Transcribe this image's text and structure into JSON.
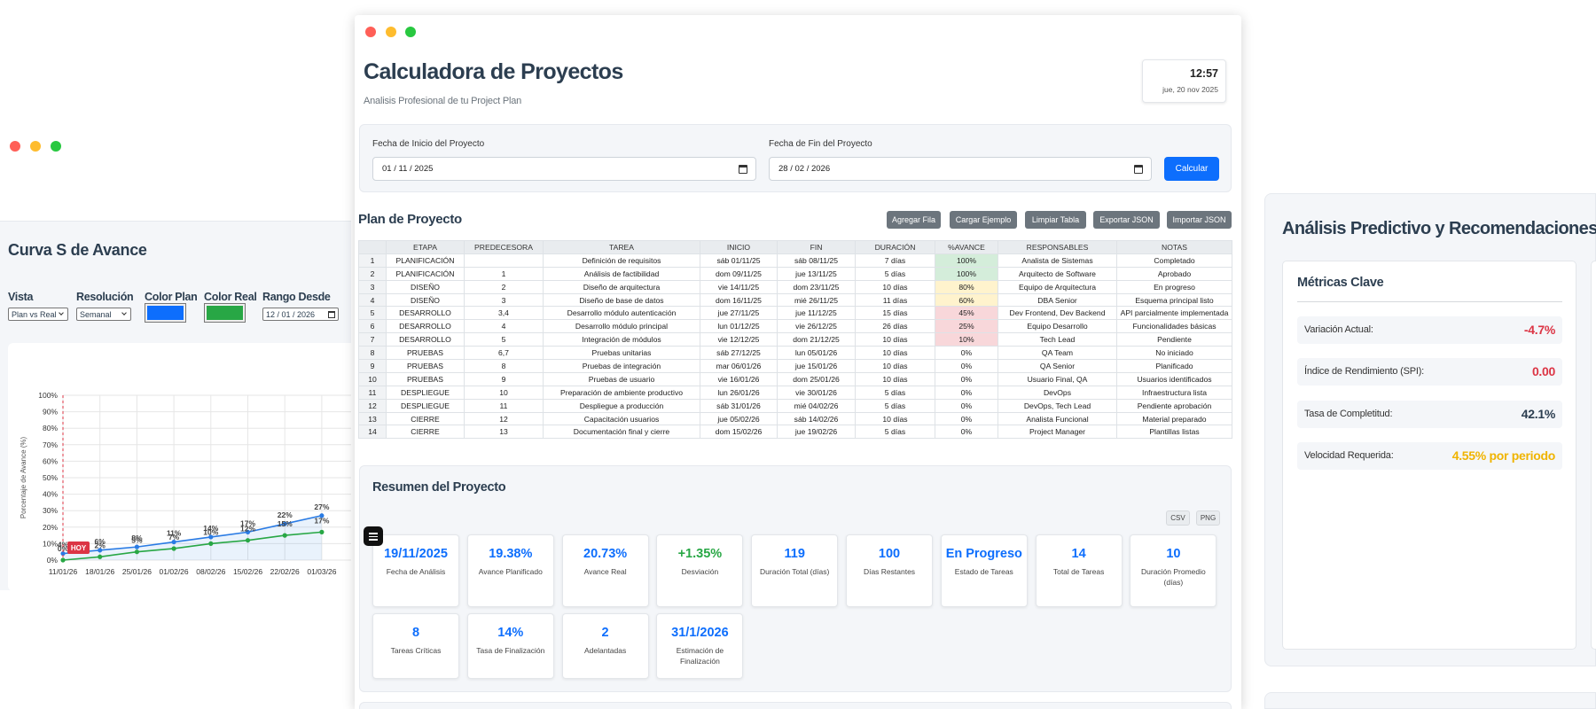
{
  "left_window": {
    "title": "Curva S de Avance",
    "controls": [
      {
        "label": "Vista",
        "kind": "select",
        "value": "Plan vs Real"
      },
      {
        "label": "Resolución",
        "kind": "select",
        "value": "Semanal"
      },
      {
        "label": "Color Plan",
        "kind": "color",
        "color": "#0d6efd"
      },
      {
        "label": "Color Real",
        "kind": "color",
        "color": "#28a745"
      },
      {
        "label": "Rango Desde",
        "kind": "date",
        "value": "12 / 01 / 2026"
      }
    ],
    "chart": {
      "type": "line",
      "ylabel": "Porcentaje de Avance (%)",
      "today_marker": "HOY",
      "categories": [
        "11/01/26",
        "18/01/26",
        "25/01/26",
        "01/02/26",
        "08/02/26",
        "15/02/26",
        "22/02/26",
        "01/03/26"
      ],
      "series": [
        {
          "color": "#2a7be4",
          "values": [
            4,
            6,
            8,
            11,
            14,
            17,
            22,
            27
          ],
          "value_labels": [
            "4%",
            "6%",
            "8%",
            "11%",
            "14%",
            "17%",
            "22%",
            "27%"
          ]
        },
        {
          "color": "#28a745",
          "values": [
            0,
            2,
            5,
            7,
            10,
            12,
            15,
            17
          ],
          "value_labels": [
            "0%",
            "2%",
            "5%",
            "7%",
            "10%",
            "12%",
            "15%",
            "17%"
          ]
        }
      ],
      "ylim": [
        0,
        100
      ],
      "yticks": [
        {
          "value": 0,
          "label": "0%"
        },
        {
          "value": 10,
          "label": "10%"
        },
        {
          "value": 20,
          "label": "20%"
        },
        {
          "value": 30,
          "label": "30%"
        },
        {
          "value": 40,
          "label": "40%"
        },
        {
          "value": 50,
          "label": "50%"
        },
        {
          "value": 60,
          "label": "60%"
        },
        {
          "value": 70,
          "label": "70%"
        },
        {
          "value": 80,
          "label": "80%"
        },
        {
          "value": 90,
          "label": "90%"
        },
        {
          "value": 100,
          "label": "100%"
        }
      ],
      "grid": true
    }
  },
  "main": {
    "title": "Calculadora de Proyectos",
    "subtitle": "Analisis Profesional de tu Project Plan",
    "clock": {
      "time": "12:57",
      "date": "jue, 20 nov 2025"
    },
    "dates": {
      "start_label": "Fecha de Inicio del Proyecto",
      "start_value": "01 / 11 / 2025",
      "end_label": "Fecha de Fin del Proyecto",
      "end_value": "28 / 02 / 2026",
      "button": "Calcular"
    },
    "plan": {
      "title": "Plan de Proyecto",
      "buttons": [
        "Agregar Fila",
        "Cargar Ejemplo",
        "Limpiar Tabla",
        "Exportar JSON",
        "Importar JSON"
      ],
      "headers": [
        "ETAPA",
        "PREDECESORA",
        "TAREA",
        "INICIO",
        "FIN",
        "DURACIÓN",
        "%AVANCE",
        "RESPONSABLES",
        "NOTAS"
      ],
      "rows": [
        [
          "1",
          "PLANIFICACIÓN",
          null,
          "Definición de requisitos",
          "sáb 01/11/25",
          "sáb 08/11/25",
          "7 días",
          "100%",
          "Analista de Sistemas",
          "Completado"
        ],
        [
          "2",
          "PLANIFICACIÓN",
          "1",
          "Análisis de factibilidad",
          "dom 09/11/25",
          "jue 13/11/25",
          "5 días",
          "100%",
          "Arquitecto de Software",
          "Aprobado"
        ],
        [
          "3",
          "DISEÑO",
          "2",
          "Diseño de arquitectura",
          "vie 14/11/25",
          "dom 23/11/25",
          "10 días",
          "80%",
          "Equipo de Arquitectura",
          "En progreso"
        ],
        [
          "4",
          "DISEÑO",
          "3",
          "Diseño de base de datos",
          "dom 16/11/25",
          "mié 26/11/25",
          "11 días",
          "60%",
          "DBA Senior",
          "Esquema principal listo"
        ],
        [
          "5",
          "DESARROLLO",
          "3,4",
          "Desarrollo módulo autenticación",
          "jue 27/11/25",
          "jue 11/12/25",
          "15 días",
          "45%",
          "Dev Frontend, Dev Backend",
          "API parcialmente implementada"
        ],
        [
          "6",
          "DESARROLLO",
          "4",
          "Desarrollo módulo principal",
          "lun 01/12/25",
          "vie 26/12/25",
          "26 días",
          "25%",
          "Equipo Desarrollo",
          "Funcionalidades básicas"
        ],
        [
          "7",
          "DESARROLLO",
          "5",
          "Integración de módulos",
          "vie 12/12/25",
          "dom 21/12/25",
          "10 días",
          "10%",
          "Tech Lead",
          "Pendiente"
        ],
        [
          "8",
          "PRUEBAS",
          "6,7",
          "Pruebas unitarias",
          "sáb 27/12/25",
          "lun 05/01/26",
          "10 días",
          "0%",
          "QA Team",
          "No iniciado"
        ],
        [
          "9",
          "PRUEBAS",
          "8",
          "Pruebas de integración",
          "mar 06/01/26",
          "jue 15/01/26",
          "10 días",
          "0%",
          "QA Senior",
          "Planificado"
        ],
        [
          "10",
          "PRUEBAS",
          "9",
          "Pruebas de usuario",
          "vie 16/01/26",
          "dom 25/01/26",
          "10 días",
          "0%",
          "Usuario Final, QA",
          "Usuarios identificados"
        ],
        [
          "11",
          "DESPLIEGUE",
          "10",
          "Preparación de ambiente productivo",
          "lun 26/01/26",
          "vie 30/01/26",
          "5 días",
          "0%",
          "DevOps",
          "Infraestructura lista"
        ],
        [
          "12",
          "DESPLIEGUE",
          "11",
          "Despliegue a producción",
          "sáb 31/01/26",
          "mié 04/02/26",
          "5 días",
          "0%",
          "DevOps, Tech Lead",
          "Pendiente aprobación"
        ],
        [
          "13",
          "CIERRE",
          "12",
          "Capacitación usuarios",
          "jue 05/02/26",
          "sáb 14/02/26",
          "10 días",
          "0%",
          "Analista Funcional",
          "Material preparado"
        ],
        [
          "14",
          "CIERRE",
          "13",
          "Documentación final y cierre",
          "dom 15/02/26",
          "jue 19/02/26",
          "5 días",
          "0%",
          "Project Manager",
          "Plantillas listas"
        ]
      ]
    },
    "summary": {
      "title": "Resumen del Proyecto",
      "exports": [
        "CSV",
        "PNG"
      ],
      "metrics": [
        {
          "value": "19/11/2025",
          "label": "Fecha de Análisis",
          "color": "#0d6efd"
        },
        {
          "value": "19.38%",
          "label": "Avance Planificado",
          "color": "#0d6efd"
        },
        {
          "value": "20.73%",
          "label": "Avance Real",
          "color": "#0d6efd"
        },
        {
          "value": "+1.35%",
          "label": "Desviación",
          "color": "#28a745"
        },
        {
          "value": "119",
          "label": "Duración Total (días)",
          "color": "#0d6efd"
        },
        {
          "value": "100",
          "label": "Días Restantes",
          "color": "#0d6efd"
        },
        {
          "value": "En Progreso",
          "label": "Estado de Tareas",
          "color": "#0d6efd"
        },
        {
          "value": "14",
          "label": "Total de Tareas",
          "color": "#0d6efd"
        },
        {
          "value": "10",
          "label": "Duración Promedio (días)",
          "color": "#0d6efd"
        },
        {
          "value": "8",
          "label": "Tareas Críticas",
          "color": "#0d6efd"
        },
        {
          "value": "14%",
          "label": "Tasa de Finalización",
          "color": "#0d6efd"
        },
        {
          "value": "2",
          "label": "Adelantadas",
          "color": "#0d6efd"
        },
        {
          "value": "31/1/2026",
          "label": "Estimación de Finalización",
          "color": "#0d6efd"
        }
      ]
    }
  },
  "right": {
    "title": "Análisis Predictivo y Recomendaciones",
    "section": "Métricas Clave",
    "metrics": [
      {
        "label": "Variación Actual:",
        "value": "-4.7%",
        "color": "#dc3545"
      },
      {
        "label": "Índice de Rendimiento (SPI):",
        "value": "0.00",
        "color": "#dc3545"
      },
      {
        "label": "Tasa de Completitud:",
        "value": "42.1%",
        "color": "#2c3e50"
      },
      {
        "label": "Velocidad Requerida:",
        "value": "4.55% por periodo",
        "color": "#f0b400"
      }
    ]
  }
}
